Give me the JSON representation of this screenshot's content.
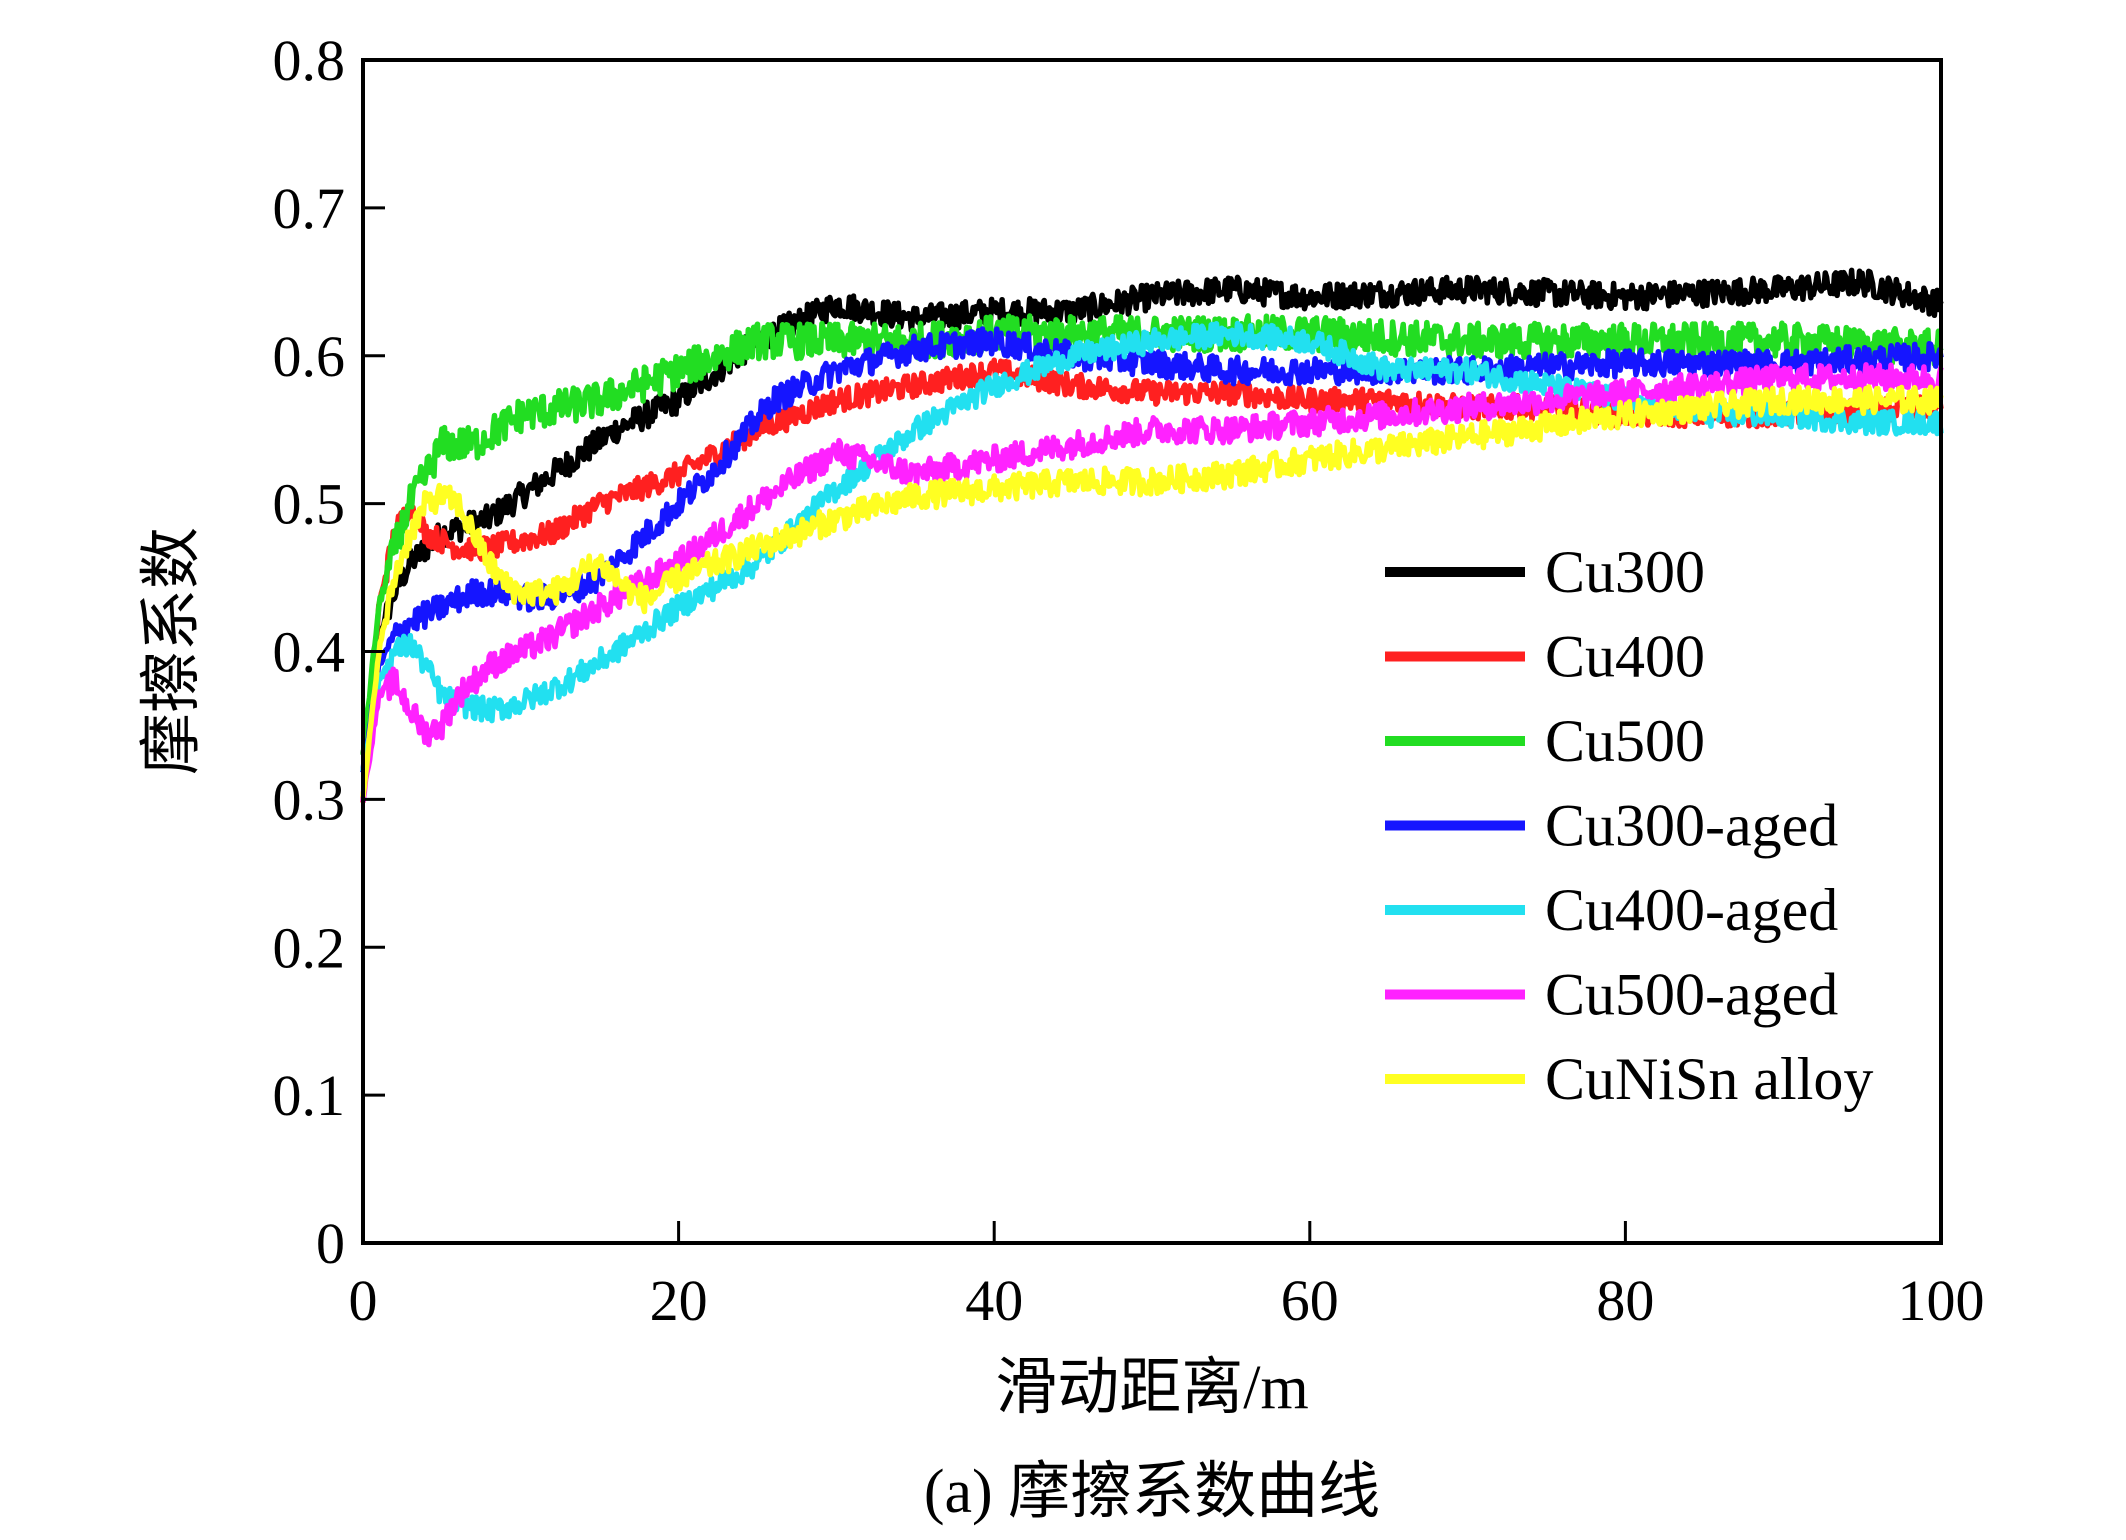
{
  "caption": "(a) 摩擦系数曲线",
  "chart_data": {
    "type": "line",
    "xlabel": "滑动距离/m",
    "ylabel": "摩擦系数",
    "xlim": [
      0,
      100
    ],
    "ylim": [
      0,
      0.8
    ],
    "x_ticks": [
      0,
      20,
      40,
      60,
      80,
      100
    ],
    "x_tick_labels": [
      "0",
      "20",
      "40",
      "60",
      "80",
      "100"
    ],
    "y_ticks": [
      0,
      0.1,
      0.2,
      0.3,
      0.4,
      0.5,
      0.6,
      0.7,
      0.8
    ],
    "y_tick_labels": [
      "0",
      "0.1",
      "0.2",
      "0.3",
      "0.4",
      "0.5",
      "0.6",
      "0.7",
      "0.8"
    ],
    "grid": false,
    "legend_position": "right, inside plot",
    "series": [
      {
        "name": "Cu300",
        "color": "#000000",
        "noise": 0.009,
        "x": [
          0,
          1,
          2,
          3,
          5,
          8,
          12,
          16,
          20,
          25,
          30,
          35,
          40,
          45,
          50,
          55,
          60,
          70,
          80,
          90,
          95,
          100
        ],
        "y": [
          0.33,
          0.41,
          0.44,
          0.46,
          0.48,
          0.49,
          0.52,
          0.55,
          0.57,
          0.61,
          0.635,
          0.625,
          0.63,
          0.63,
          0.64,
          0.645,
          0.64,
          0.645,
          0.64,
          0.645,
          0.65,
          0.635
        ]
      },
      {
        "name": "Cu400",
        "color": "#ff2020",
        "noise": 0.008,
        "x": [
          0,
          1,
          2,
          3,
          4,
          6,
          8,
          10,
          12,
          15,
          20,
          25,
          30,
          35,
          40,
          45,
          50,
          55,
          60,
          65,
          70,
          75,
          80,
          90,
          100
        ],
        "y": [
          0.3,
          0.43,
          0.48,
          0.5,
          0.48,
          0.47,
          0.47,
          0.475,
          0.48,
          0.5,
          0.52,
          0.55,
          0.57,
          0.58,
          0.59,
          0.58,
          0.575,
          0.575,
          0.57,
          0.57,
          0.565,
          0.565,
          0.56,
          0.56,
          0.565
        ]
      },
      {
        "name": "Cu500",
        "color": "#22dd22",
        "noise": 0.012,
        "x": [
          0,
          1,
          2,
          3,
          4,
          5,
          7,
          10,
          15,
          20,
          25,
          30,
          35,
          40,
          50,
          60,
          70,
          80,
          90,
          100
        ],
        "y": [
          0.33,
          0.43,
          0.47,
          0.5,
          0.52,
          0.54,
          0.54,
          0.56,
          0.57,
          0.59,
          0.61,
          0.61,
          0.61,
          0.615,
          0.615,
          0.615,
          0.61,
          0.61,
          0.61,
          0.605
        ]
      },
      {
        "name": "Cu300-aged",
        "color": "#1515ff",
        "noise": 0.009,
        "x": [
          0,
          1,
          2,
          3,
          5,
          7,
          9,
          11,
          13,
          15,
          18,
          22,
          26,
          30,
          35,
          40,
          45,
          50,
          55,
          60,
          70,
          80,
          90,
          100
        ],
        "y": [
          0.32,
          0.39,
          0.41,
          0.42,
          0.43,
          0.44,
          0.44,
          0.435,
          0.44,
          0.45,
          0.48,
          0.52,
          0.57,
          0.59,
          0.605,
          0.61,
          0.6,
          0.595,
          0.59,
          0.59,
          0.59,
          0.595,
          0.595,
          0.6
        ]
      },
      {
        "name": "Cu400-aged",
        "color": "#22e0f0",
        "noise": 0.008,
        "x": [
          0,
          1,
          2,
          3,
          4,
          5,
          6,
          8,
          10,
          13,
          16,
          20,
          25,
          30,
          35,
          40,
          45,
          50,
          55,
          60,
          65,
          70,
          75,
          80,
          85,
          90,
          95,
          100
        ],
        "y": [
          0.32,
          0.38,
          0.4,
          0.405,
          0.39,
          0.37,
          0.365,
          0.36,
          0.365,
          0.38,
          0.4,
          0.43,
          0.46,
          0.51,
          0.55,
          0.58,
          0.6,
          0.61,
          0.615,
          0.61,
          0.59,
          0.59,
          0.58,
          0.57,
          0.56,
          0.56,
          0.555,
          0.555
        ]
      },
      {
        "name": "Cu500-aged",
        "color": "#ff22ff",
        "noise": 0.009,
        "x": [
          0,
          1,
          2,
          3,
          4,
          5,
          6,
          8,
          10,
          12,
          15,
          20,
          25,
          30,
          35,
          40,
          45,
          50,
          55,
          60,
          70,
          80,
          90,
          100
        ],
        "y": [
          0.3,
          0.37,
          0.38,
          0.36,
          0.345,
          0.35,
          0.37,
          0.39,
          0.4,
          0.41,
          0.43,
          0.46,
          0.5,
          0.535,
          0.52,
          0.53,
          0.54,
          0.55,
          0.55,
          0.555,
          0.565,
          0.575,
          0.585,
          0.585
        ]
      },
      {
        "name": "CuNiSn alloy",
        "color": "#ffff22",
        "noise": 0.009,
        "x": [
          0,
          1,
          2,
          3,
          4,
          5,
          6,
          7,
          8,
          9,
          10,
          11,
          12,
          13,
          14,
          15,
          16,
          17,
          18,
          20,
          25,
          30,
          35,
          40,
          45,
          50,
          55,
          60,
          70,
          80,
          90,
          100
        ],
        "y": [
          0.3,
          0.4,
          0.45,
          0.48,
          0.5,
          0.505,
          0.5,
          0.48,
          0.46,
          0.445,
          0.44,
          0.44,
          0.44,
          0.445,
          0.455,
          0.46,
          0.45,
          0.44,
          0.435,
          0.45,
          0.47,
          0.49,
          0.505,
          0.51,
          0.515,
          0.515,
          0.52,
          0.53,
          0.545,
          0.56,
          0.57,
          0.57
        ]
      }
    ]
  }
}
